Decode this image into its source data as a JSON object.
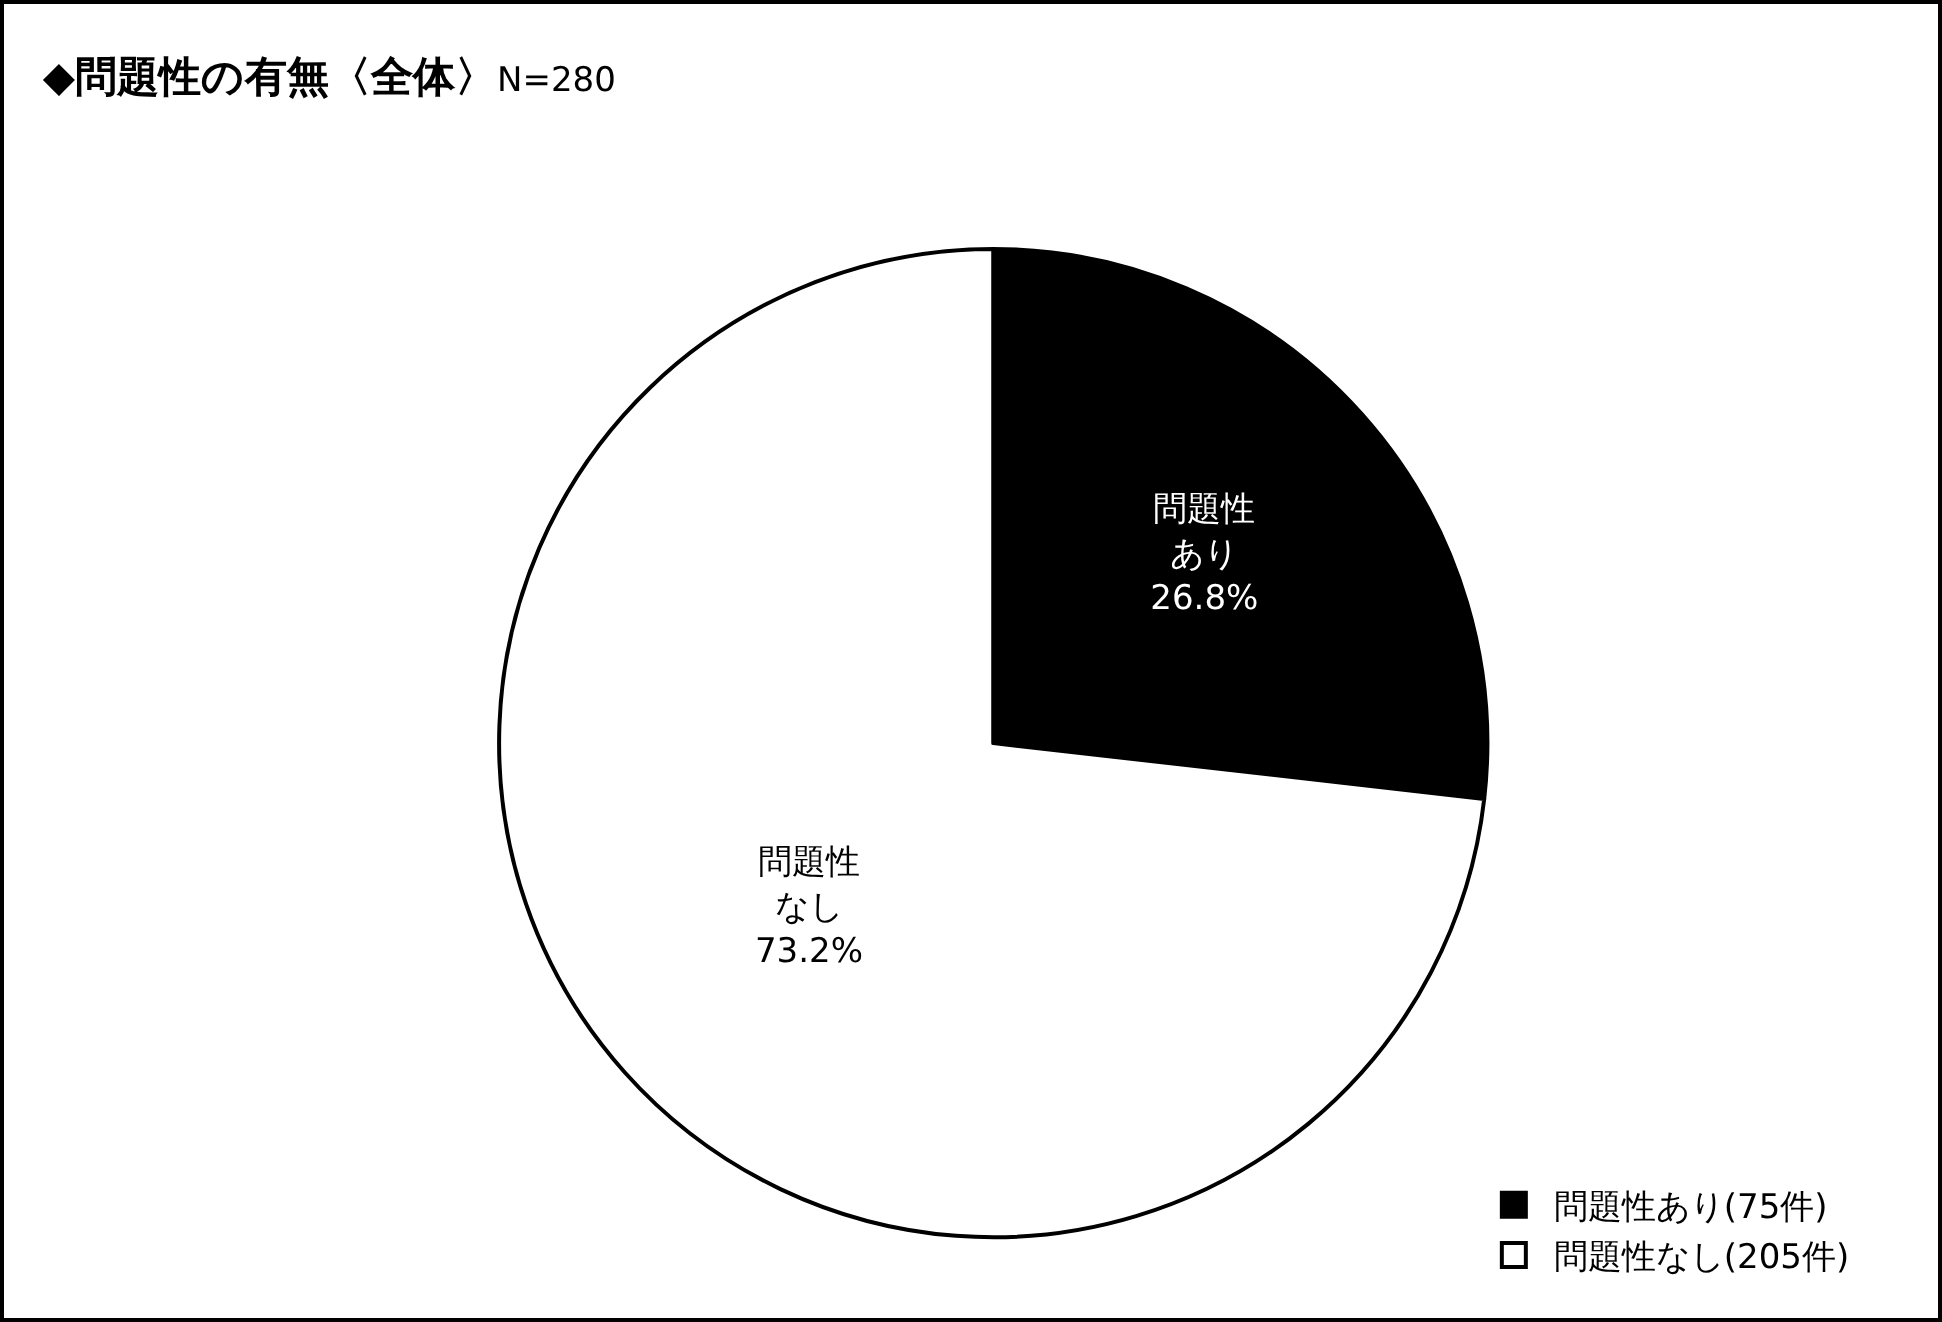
{
  "chart_data": {
    "type": "pie",
    "title": "◆問題性の有無〈全体〉",
    "subtitle": "N=280",
    "categories": [
      "問題性あり(75件)",
      "問題性なし(205件)"
    ],
    "values": [
      26.8,
      73.2
    ],
    "colors": [
      "#000000",
      "#ffffff"
    ],
    "value_labels": [
      "問題性あり26.8%",
      "問題性なし73.2%"
    ],
    "legend": "bottom right"
  }
}
